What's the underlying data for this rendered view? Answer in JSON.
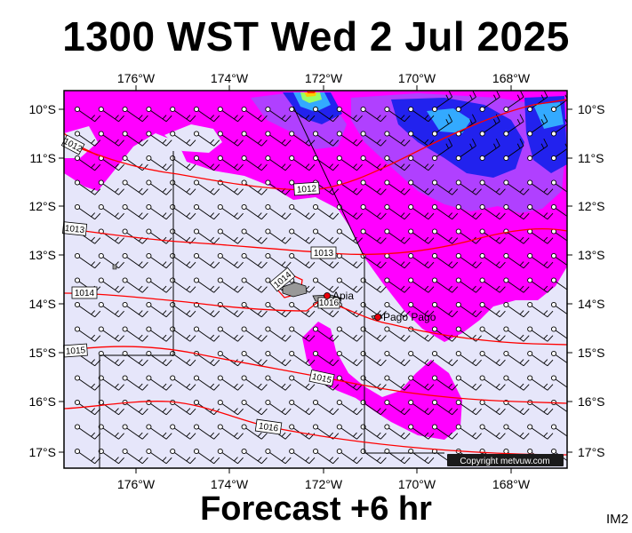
{
  "header": {
    "title": "1300 WST Wed 2 Jul 2025"
  },
  "footer": {
    "forecast": "Forecast +6 hr",
    "code": "IM2"
  },
  "map": {
    "lon_labels": [
      "176°W",
      "174°W",
      "172°W",
      "170°W",
      "168°W"
    ],
    "lat_labels": [
      "10°S",
      "11°S",
      "12°S",
      "13°S",
      "14°S",
      "15°S",
      "16°S",
      "17°S"
    ],
    "isobar_labels": [
      "1012",
      "1012",
      "1013",
      "1013",
      "1014",
      "1014",
      "1015",
      "1015",
      "1016",
      "1016"
    ],
    "places": [
      {
        "name": "Apia",
        "color": "#e8000b"
      },
      {
        "name": "Pago Pago",
        "color": "#e8000b"
      }
    ],
    "copyright": "Copyright metvuw.com",
    "colors": {
      "light": "#e6e6fa",
      "magenta": "#ff00ff",
      "violet": "#b040ff",
      "blue": "#2222ee",
      "isobar": "#ff0000"
    }
  }
}
